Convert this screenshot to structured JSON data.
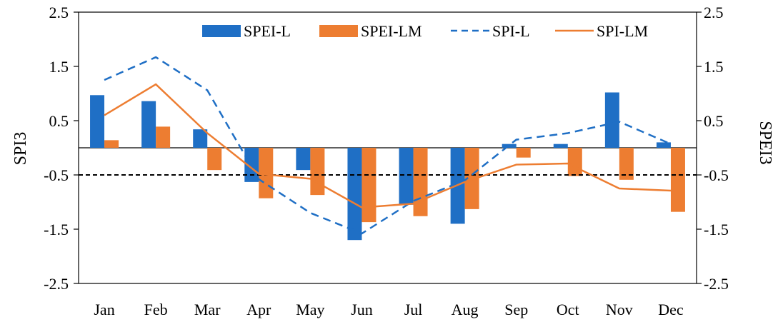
{
  "chart_data": {
    "type": "bar",
    "categories": [
      "Jan",
      "Feb",
      "Mar",
      "Apr",
      "May",
      "Jun",
      "Jul",
      "Aug",
      "Sep",
      "Oct",
      "Nov",
      "Dec"
    ],
    "series": [
      {
        "name": "SPEI-L",
        "type": "bar",
        "axis": "right",
        "color": "#1f6fc5",
        "values": [
          0.97,
          0.86,
          0.34,
          -0.63,
          -0.41,
          -1.7,
          -1.05,
          -1.4,
          0.07,
          0.07,
          1.02,
          0.1
        ]
      },
      {
        "name": "SPEI-LM",
        "type": "bar",
        "axis": "right",
        "color": "#ed7d31",
        "values": [
          0.14,
          0.39,
          -0.41,
          -0.93,
          -0.87,
          -1.37,
          -1.26,
          -1.13,
          -0.18,
          -0.52,
          -0.59,
          -1.18
        ]
      },
      {
        "name": "SPI-L",
        "type": "line",
        "style": "dashed",
        "axis": "left",
        "color": "#1f6fc5",
        "values": [
          1.25,
          1.67,
          1.06,
          -0.58,
          -1.2,
          -1.58,
          -0.98,
          -0.6,
          0.15,
          0.27,
          0.48,
          0.07
        ]
      },
      {
        "name": "SPI-LM",
        "type": "line",
        "style": "solid",
        "axis": "left",
        "color": "#ed7d31",
        "values": [
          0.6,
          1.17,
          0.27,
          -0.48,
          -0.57,
          -1.1,
          -1.03,
          -0.63,
          -0.31,
          -0.29,
          -0.75,
          -0.79
        ]
      }
    ],
    "reference_line": {
      "value": -0.5,
      "style": "dashed",
      "color": "#000000"
    },
    "ylabel_left": "SPI3",
    "ylabel_right": "SPEI3",
    "ylim": [
      -2.5,
      2.5
    ],
    "yticks": [
      "2.5",
      "1.5",
      "0.5",
      "-0.5",
      "-1.5",
      "-2.5"
    ],
    "legend": "top-center",
    "grid": false
  }
}
